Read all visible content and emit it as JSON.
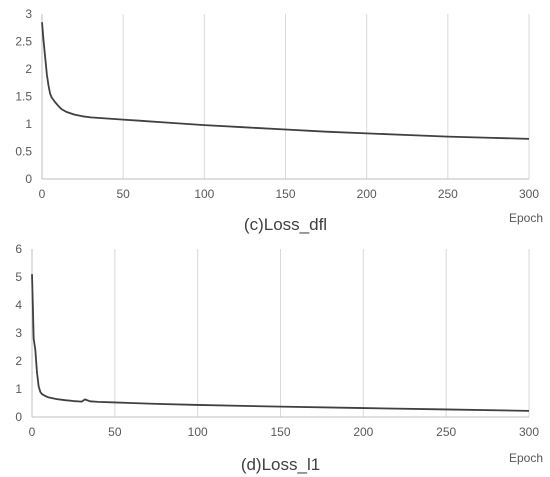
{
  "chart_data": [
    {
      "type": "line",
      "title": "(c)Loss_dfl",
      "xlabel": "Epoch",
      "ylabel": "",
      "xlim": [
        0,
        300
      ],
      "ylim": [
        0,
        3
      ],
      "x_ticks": [
        0,
        50,
        100,
        150,
        200,
        250,
        300
      ],
      "y_ticks": [
        0,
        0.5,
        1,
        1.5,
        2,
        2.5,
        3
      ],
      "grid": "vertical",
      "line_color": "#404040",
      "series": [
        {
          "x": [
            0,
            1,
            2,
            3,
            4,
            5,
            6,
            8,
            10,
            12,
            15,
            20,
            25,
            30,
            40,
            50,
            60,
            75,
            100,
            125,
            150,
            175,
            200,
            225,
            250,
            275,
            300
          ],
          "values": [
            2.85,
            2.5,
            2.2,
            1.9,
            1.7,
            1.55,
            1.48,
            1.4,
            1.33,
            1.27,
            1.22,
            1.17,
            1.14,
            1.12,
            1.1,
            1.08,
            1.06,
            1.03,
            0.98,
            0.94,
            0.9,
            0.86,
            0.83,
            0.8,
            0.77,
            0.75,
            0.73
          ]
        }
      ]
    },
    {
      "type": "line",
      "title": "(d)Loss_l1",
      "xlabel": "Epoch",
      "ylabel": "",
      "xlim": [
        0,
        300
      ],
      "ylim": [
        0,
        6
      ],
      "x_ticks": [
        0,
        50,
        100,
        150,
        200,
        250,
        300
      ],
      "y_ticks": [
        0,
        1,
        2,
        3,
        4,
        5,
        6
      ],
      "grid": "vertical",
      "line_color": "#404040",
      "series": [
        {
          "x": [
            0,
            0.5,
            1,
            2,
            3,
            4,
            5,
            6,
            8,
            10,
            15,
            20,
            25,
            30,
            32,
            35,
            40,
            50,
            75,
            100,
            150,
            200,
            250,
            300
          ],
          "values": [
            5.1,
            4.0,
            2.8,
            2.4,
            1.6,
            1.1,
            0.9,
            0.82,
            0.75,
            0.7,
            0.64,
            0.6,
            0.57,
            0.55,
            0.63,
            0.56,
            0.54,
            0.52,
            0.47,
            0.43,
            0.37,
            0.32,
            0.27,
            0.22
          ]
        }
      ]
    }
  ]
}
